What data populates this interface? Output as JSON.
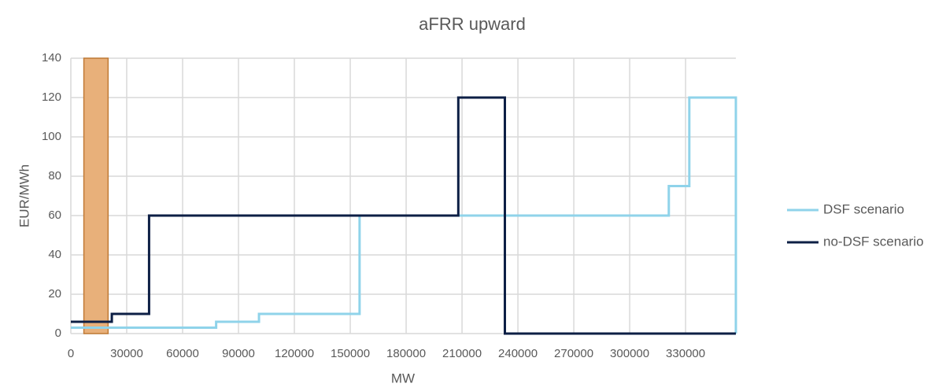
{
  "chart_data": {
    "type": "line",
    "title": "aFRR upward",
    "x_label": "MW",
    "y_label": "EUR/MWh",
    "series": [
      {
        "name": "DSF scenario",
        "color": "#8fd3ea",
        "step": true,
        "x": [
          0,
          78000,
          78000,
          101000,
          101000,
          155000,
          155000,
          321000,
          321000,
          332000,
          332000,
          357000,
          357000
        ],
        "values": [
          3,
          3,
          6,
          6,
          10,
          10,
          60,
          60,
          75,
          75,
          120,
          120,
          0
        ]
      },
      {
        "name": "no-DSF scenario",
        "color": "#0d1f45",
        "step": true,
        "x": [
          0,
          22000,
          22000,
          42000,
          42000,
          208000,
          208000,
          233000,
          233000,
          357000
        ],
        "values": [
          6,
          6,
          10,
          10,
          60,
          60,
          120,
          120,
          0,
          0
        ]
      }
    ],
    "highlight": {
      "x": [
        7000,
        20000
      ],
      "color": "#e8b07a",
      "border": "#c07a35"
    },
    "xlim": [
      0,
      357000
    ],
    "ylim": [
      0,
      140
    ],
    "xticks": [
      0,
      30000,
      60000,
      90000,
      120000,
      150000,
      180000,
      210000,
      240000,
      270000,
      300000,
      330000
    ],
    "yticks": [
      0,
      20,
      40,
      60,
      80,
      100,
      120,
      140
    ],
    "grid": true,
    "legend": "right"
  }
}
